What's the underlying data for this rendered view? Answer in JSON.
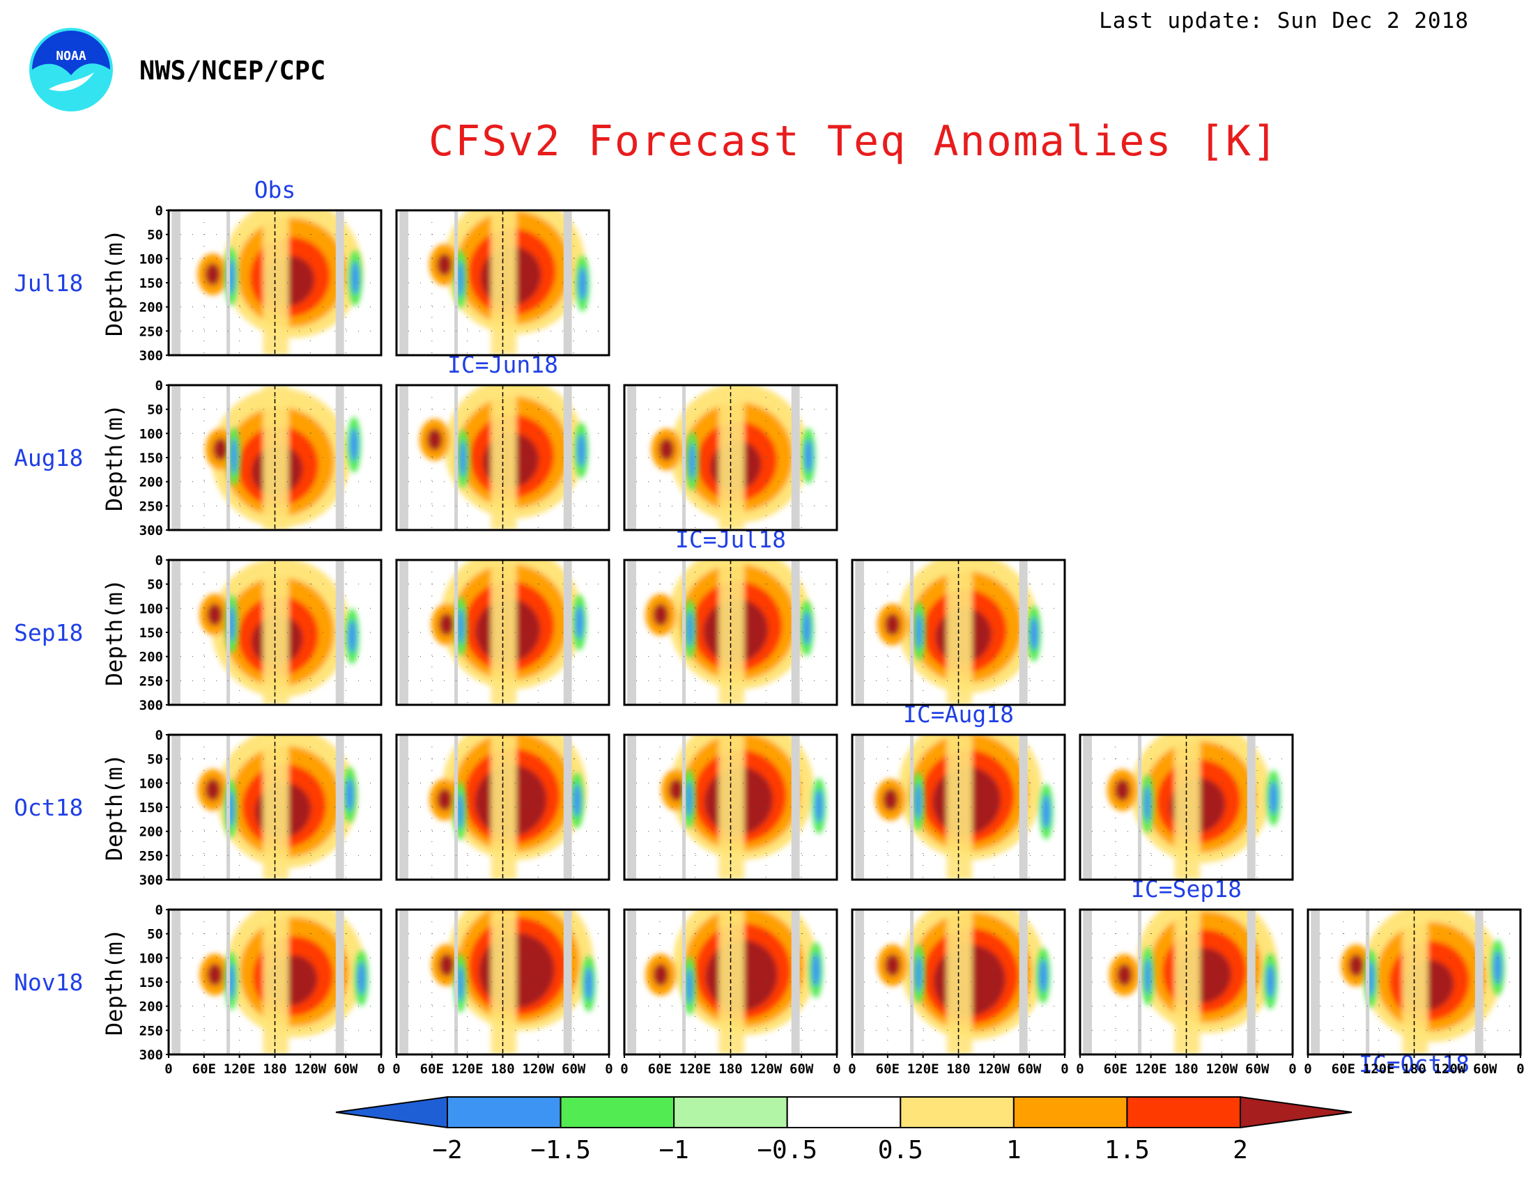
{
  "header": {
    "last_update": "Last update: Sun Dec 2 2018",
    "agency": "NWS/NCEP/CPC",
    "logo_text": "NOAA",
    "title": "CFSv2 Forecast Teq Anomalies [K]"
  },
  "colors": {
    "title": "#e81c1c",
    "labels": "#1f3fe6",
    "land_mask": "#d3d3d3"
  },
  "chart_data": {
    "type": "heatmap",
    "title": "CFSv2 Forecast Teq Anomalies [K]",
    "ylabel": "Depth(m)",
    "yticks": [
      "0",
      "50",
      "100",
      "150",
      "200",
      "250",
      "300"
    ],
    "ylim": [
      300,
      0
    ],
    "xticks": [
      "0",
      "60E",
      "120E",
      "180",
      "120W",
      "60W",
      "0"
    ],
    "rows": [
      "Jul18",
      "Aug18",
      "Sep18",
      "Oct18",
      "Nov18"
    ],
    "columns": [
      "Obs",
      "IC=Jun18",
      "IC=Jul18",
      "IC=Aug18",
      "IC=Sep18",
      "IC=Oct18"
    ],
    "colorbar": {
      "levels": [
        "-2",
        "-1.5",
        "-1",
        "-0.5",
        "0.5",
        "1",
        "1.5",
        "2"
      ],
      "colors": [
        "#1f5fd6",
        "#3d94f2",
        "#52eb52",
        "#b2f5a6",
        "#ffffff",
        "#ffe47a",
        "#ffa000",
        "#ff3a00",
        "#a61e1e"
      ]
    },
    "panels": [
      {
        "row": 0,
        "col": 0,
        "peak": 2.3,
        "center_lon": 210,
        "center_depth": 120
      },
      {
        "row": 0,
        "col": 1,
        "peak": 2.5,
        "center_lon": 200,
        "center_depth": 110
      },
      {
        "row": 1,
        "col": 0,
        "peak": 2.3,
        "center_lon": 190,
        "center_depth": 150
      },
      {
        "row": 1,
        "col": 1,
        "peak": 2.4,
        "center_lon": 200,
        "center_depth": 130
      },
      {
        "row": 1,
        "col": 2,
        "peak": 2.3,
        "center_lon": 195,
        "center_depth": 140
      },
      {
        "row": 2,
        "col": 0,
        "peak": 2.3,
        "center_lon": 190,
        "center_depth": 140
      },
      {
        "row": 2,
        "col": 1,
        "peak": 2.6,
        "center_lon": 195,
        "center_depth": 120
      },
      {
        "row": 2,
        "col": 2,
        "peak": 2.6,
        "center_lon": 195,
        "center_depth": 120
      },
      {
        "row": 2,
        "col": 3,
        "peak": 2.4,
        "center_lon": 195,
        "center_depth": 130
      },
      {
        "row": 3,
        "col": 0,
        "peak": 2.4,
        "center_lon": 200,
        "center_depth": 130
      },
      {
        "row": 3,
        "col": 1,
        "peak": 2.8,
        "center_lon": 200,
        "center_depth": 110
      },
      {
        "row": 3,
        "col": 2,
        "peak": 2.7,
        "center_lon": 200,
        "center_depth": 110
      },
      {
        "row": 3,
        "col": 3,
        "peak": 2.7,
        "center_lon": 200,
        "center_depth": 110
      },
      {
        "row": 3,
        "col": 4,
        "peak": 2.4,
        "center_lon": 205,
        "center_depth": 120
      },
      {
        "row": 4,
        "col": 0,
        "peak": 2.3,
        "center_lon": 215,
        "center_depth": 120
      },
      {
        "row": 4,
        "col": 1,
        "peak": 2.9,
        "center_lon": 210,
        "center_depth": 100
      },
      {
        "row": 4,
        "col": 2,
        "peak": 2.8,
        "center_lon": 205,
        "center_depth": 110
      },
      {
        "row": 4,
        "col": 3,
        "peak": 2.8,
        "center_lon": 205,
        "center_depth": 120
      },
      {
        "row": 4,
        "col": 4,
        "peak": 2.4,
        "center_lon": 215,
        "center_depth": 110
      },
      {
        "row": 4,
        "col": 5,
        "peak": 2.3,
        "center_lon": 210,
        "center_depth": 130
      }
    ]
  }
}
